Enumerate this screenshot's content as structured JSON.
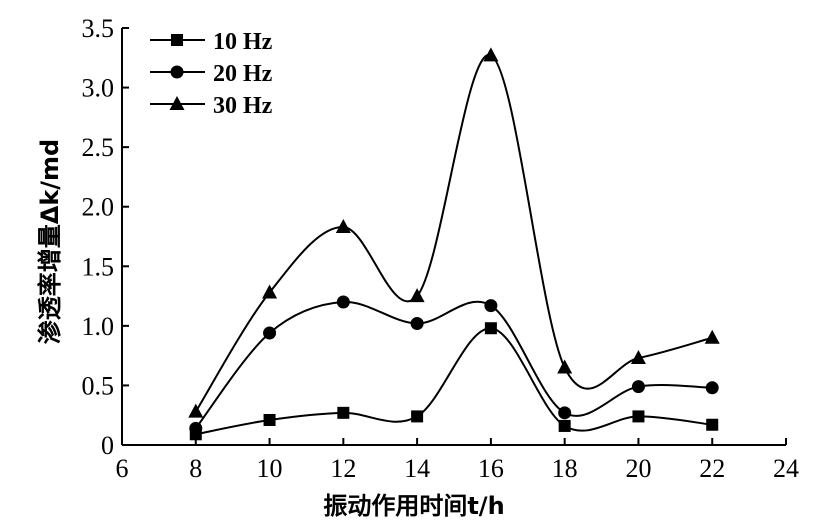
{
  "chart_data": {
    "type": "line",
    "xlabel": "振动作用时间t/h",
    "ylabel": "渗透率增量Δk/md",
    "xlim": [
      6,
      24
    ],
    "ylim": [
      0,
      3.5
    ],
    "x_ticks": [
      "6",
      "8",
      "10",
      "12",
      "14",
      "16",
      "18",
      "20",
      "22",
      "24"
    ],
    "y_ticks": [
      "0",
      "0.5",
      "1.0",
      "1.5",
      "2.0",
      "2.5",
      "3.0",
      "3.5"
    ],
    "x": [
      8,
      10,
      12,
      14,
      16,
      18,
      20,
      22
    ],
    "series": [
      {
        "name": "10 Hz",
        "marker": "square",
        "values": [
          0.09,
          0.21,
          0.27,
          0.24,
          0.98,
          0.16,
          0.24,
          0.17
        ]
      },
      {
        "name": "20 Hz",
        "marker": "circle",
        "values": [
          0.14,
          0.94,
          1.2,
          1.02,
          1.17,
          0.27,
          0.49,
          0.48
        ]
      },
      {
        "name": "30 Hz",
        "marker": "triangle",
        "values": [
          0.28,
          1.28,
          1.83,
          1.25,
          3.27,
          0.65,
          0.73,
          0.9
        ]
      }
    ],
    "legend_position": "top-left",
    "grid": false
  }
}
